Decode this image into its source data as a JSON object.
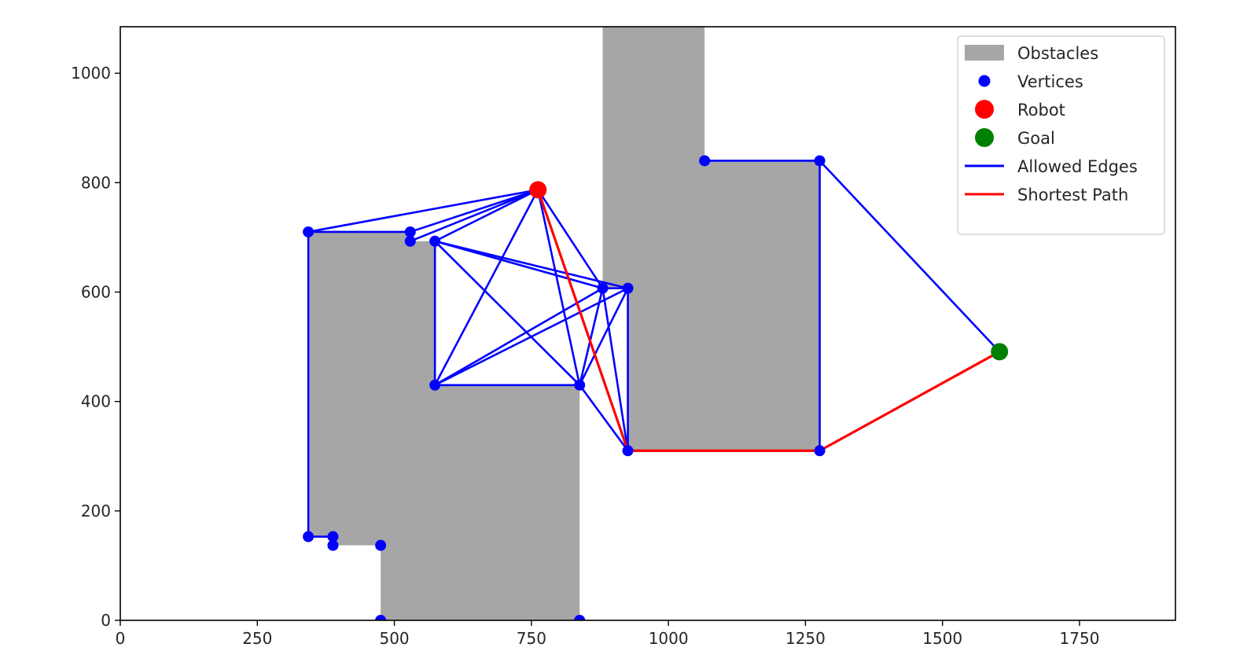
{
  "chart_data": {
    "type": "scatter",
    "title": "",
    "xlabel": "",
    "ylabel": "",
    "xlim": [
      0,
      1925
    ],
    "ylim": [
      0,
      1085
    ],
    "xticks": [
      0,
      250,
      500,
      750,
      1000,
      1250,
      1500,
      1750
    ],
    "yticks": [
      0,
      200,
      400,
      600,
      800,
      1000
    ],
    "grid": false,
    "legend_position": "top-right",
    "colors": {
      "obstacles": "#a6a6a6",
      "vertices": "#0000ff",
      "robot": "#ff0000",
      "goal": "#008000",
      "allowed_edges": "#0000ff",
      "shortest_path": "#ff0000"
    },
    "obstacles": [
      [
        [
          475,
          0
        ],
        [
          838,
          0
        ],
        [
          838,
          430
        ],
        [
          574,
          430
        ],
        [
          574,
          693
        ],
        [
          529,
          693
        ],
        [
          529,
          710
        ],
        [
          343,
          710
        ],
        [
          343,
          153
        ],
        [
          388,
          153
        ],
        [
          388,
          137
        ],
        [
          475,
          137
        ]
      ],
      [
        [
          880,
          1085
        ],
        [
          1066,
          1085
        ],
        [
          1066,
          840
        ],
        [
          1276,
          840
        ],
        [
          1276,
          310
        ],
        [
          926,
          310
        ],
        [
          926,
          607
        ],
        [
          880,
          607
        ]
      ]
    ],
    "vertices": [
      [
        343,
        710
      ],
      [
        529,
        710
      ],
      [
        529,
        693
      ],
      [
        574,
        693
      ],
      [
        574,
        430
      ],
      [
        838,
        430
      ],
      [
        880,
        607
      ],
      [
        926,
        607
      ],
      [
        926,
        310
      ],
      [
        1276,
        310
      ],
      [
        1276,
        840
      ],
      [
        1066,
        840
      ],
      [
        343,
        153
      ],
      [
        388,
        153
      ],
      [
        388,
        137
      ],
      [
        475,
        137
      ],
      [
        475,
        0
      ],
      [
        838,
        0
      ]
    ],
    "robot": [
      762,
      787
    ],
    "goal": [
      1604,
      491
    ],
    "allowed_edges": [
      [
        [
          762,
          787
        ],
        [
          343,
          710
        ]
      ],
      [
        [
          762,
          787
        ],
        [
          529,
          710
        ]
      ],
      [
        [
          762,
          787
        ],
        [
          529,
          693
        ]
      ],
      [
        [
          762,
          787
        ],
        [
          574,
          693
        ]
      ],
      [
        [
          762,
          787
        ],
        [
          574,
          430
        ]
      ],
      [
        [
          762,
          787
        ],
        [
          838,
          430
        ]
      ],
      [
        [
          762,
          787
        ],
        [
          880,
          607
        ]
      ],
      [
        [
          762,
          787
        ],
        [
          926,
          310
        ]
      ],
      [
        [
          343,
          710
        ],
        [
          529,
          710
        ]
      ],
      [
        [
          343,
          710
        ],
        [
          343,
          153
        ]
      ],
      [
        [
          343,
          153
        ],
        [
          388,
          153
        ]
      ],
      [
        [
          574,
          693
        ],
        [
          574,
          430
        ]
      ],
      [
        [
          574,
          693
        ],
        [
          838,
          430
        ]
      ],
      [
        [
          574,
          693
        ],
        [
          880,
          607
        ]
      ],
      [
        [
          574,
          693
        ],
        [
          926,
          607
        ]
      ],
      [
        [
          574,
          430
        ],
        [
          838,
          430
        ]
      ],
      [
        [
          574,
          430
        ],
        [
          880,
          607
        ]
      ],
      [
        [
          574,
          430
        ],
        [
          926,
          607
        ]
      ],
      [
        [
          838,
          430
        ],
        [
          880,
          607
        ]
      ],
      [
        [
          838,
          430
        ],
        [
          926,
          607
        ]
      ],
      [
        [
          838,
          430
        ],
        [
          926,
          310
        ]
      ],
      [
        [
          880,
          607
        ],
        [
          926,
          607
        ]
      ],
      [
        [
          880,
          607
        ],
        [
          926,
          310
        ]
      ],
      [
        [
          926,
          607
        ],
        [
          926,
          310
        ]
      ],
      [
        [
          926,
          310
        ],
        [
          1276,
          310
        ]
      ],
      [
        [
          1276,
          310
        ],
        [
          1276,
          840
        ]
      ],
      [
        [
          1276,
          840
        ],
        [
          1066,
          840
        ]
      ],
      [
        [
          1276,
          840
        ],
        [
          1604,
          491
        ]
      ],
      [
        [
          1276,
          310
        ],
        [
          1604,
          491
        ]
      ]
    ],
    "shortest_path": [
      [
        762,
        787
      ],
      [
        926,
        310
      ],
      [
        1276,
        310
      ],
      [
        1604,
        491
      ]
    ],
    "legend": [
      {
        "label": "Obstacles",
        "kind": "patch",
        "color": "#a6a6a6"
      },
      {
        "label": "Vertices",
        "kind": "dot",
        "color": "#0000ff"
      },
      {
        "label": "Robot",
        "kind": "bigdot",
        "color": "#ff0000"
      },
      {
        "label": "Goal",
        "kind": "bigdot",
        "color": "#008000"
      },
      {
        "label": "Allowed Edges",
        "kind": "line",
        "color": "#0000ff"
      },
      {
        "label": "Shortest Path",
        "kind": "line",
        "color": "#ff0000"
      }
    ]
  }
}
